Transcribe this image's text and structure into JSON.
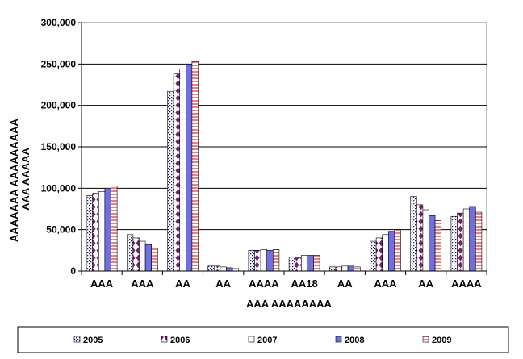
{
  "chart_data": {
    "type": "bar",
    "title": "",
    "xlabel": "AAA AAAAAAAA",
    "ylabel_lines": [
      "AAAAAAA AAAAAAAAA",
      "AAA AAAAA"
    ],
    "categories": [
      "AAA",
      "AAA",
      "AA",
      "AA",
      "AAAA",
      "AA18",
      "AA",
      "AAA",
      "AA",
      "AAAA"
    ],
    "ylim": [
      0,
      300000
    ],
    "yticks": [
      0,
      50000,
      100000,
      150000,
      200000,
      250000,
      300000
    ],
    "ytick_labels": [
      "0",
      "50,000",
      "100,000",
      "150,000",
      "200,000",
      "250,000",
      "300,000"
    ],
    "grid": true,
    "legend_position": "bottom",
    "series": [
      {
        "name": "2005",
        "pattern": "dots",
        "values": [
          91000,
          44000,
          217000,
          6000,
          25000,
          17000,
          5000,
          36000,
          90000,
          66000
        ]
      },
      {
        "name": "2006",
        "pattern": "diamonds",
        "values": [
          94000,
          40000,
          238000,
          6000,
          25000,
          16000,
          5000,
          40000,
          80000,
          70000
        ]
      },
      {
        "name": "2007",
        "pattern": "plain",
        "values": [
          96000,
          36000,
          244000,
          5000,
          26000,
          19000,
          6000,
          44000,
          74000,
          75000
        ]
      },
      {
        "name": "2008",
        "pattern": "blue",
        "values": [
          100000,
          32000,
          249000,
          4000,
          25000,
          19000,
          6000,
          48000,
          67000,
          78000
        ]
      },
      {
        "name": "2009",
        "pattern": "stripes",
        "values": [
          103000,
          28000,
          253000,
          3000,
          26000,
          19000,
          5000,
          50000,
          61000,
          71000
        ]
      }
    ]
  }
}
